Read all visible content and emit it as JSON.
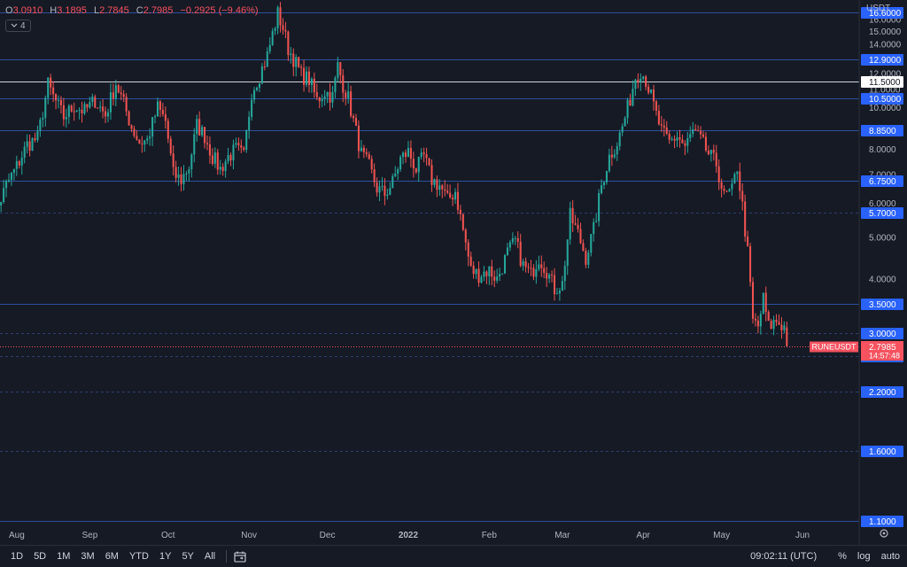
{
  "ohlc": {
    "open_label": "O",
    "open": "3.0910",
    "high_label": "H",
    "high": "3.1895",
    "low_label": "L",
    "low": "2.7845",
    "close_label": "C",
    "close": "2.7985",
    "change": "−0.2925 (−9.46%)"
  },
  "indicator_badge": {
    "icon": "chevron-down-icon",
    "count": "4"
  },
  "currency": {
    "label": "USDT",
    "icon": "chevron-down-icon"
  },
  "chart_data": {
    "type": "candlestick",
    "symbol": "RUNEUSDT",
    "x_ticks": [
      "Aug",
      "Sep",
      "Oct",
      "Nov",
      "Dec",
      "2022",
      "Feb",
      "Mar",
      "Apr",
      "May",
      "Jun"
    ],
    "y_ticks": [
      "16.0000",
      "15.0000",
      "14.0000",
      "12.0000",
      "11.0000",
      "10.0000",
      "8.0000",
      "7.0000",
      "6.0000",
      "5.0000",
      "4.0000"
    ],
    "ylim": [
      1.1,
      17.0
    ],
    "grid": false,
    "horizontal_levels": [
      {
        "value": 16.6,
        "label": "16.6000",
        "style": "blue"
      },
      {
        "value": 12.9,
        "label": "12.9000",
        "style": "blue"
      },
      {
        "value": 11.5,
        "label": "11.5000",
        "style": "white"
      },
      {
        "value": 10.5,
        "label": "10.5000",
        "style": "blue"
      },
      {
        "value": 8.85,
        "label": "8.8500",
        "style": "blue"
      },
      {
        "value": 6.75,
        "label": "6.7500",
        "style": "blue"
      },
      {
        "value": 5.7,
        "label": "5.7000",
        "style": "blue-thin"
      },
      {
        "value": 3.5,
        "label": "3.5000",
        "style": "blue"
      },
      {
        "value": 3.0,
        "label": "3.0000",
        "style": "blue-thin"
      },
      {
        "value": 2.65,
        "label": "2.6500",
        "style": "blue-thin"
      },
      {
        "value": 2.2,
        "label": "2.2000",
        "style": "blue-thin"
      },
      {
        "value": 1.6,
        "label": "1.6000",
        "style": "blue-thin"
      },
      {
        "value": 1.1,
        "label": "1.1000",
        "style": "blue"
      }
    ],
    "last_price": {
      "value": 2.7985,
      "label": "2.7985",
      "countdown": "14:57:48"
    },
    "close_path": [
      [
        "2021-07-23",
        4.0
      ],
      [
        "2021-07-27",
        5.7
      ],
      [
        "2021-07-31",
        6.6
      ],
      [
        "2021-08-04",
        7.3
      ],
      [
        "2021-08-08",
        8.2
      ],
      [
        "2021-08-12",
        8.5
      ],
      [
        "2021-08-16",
        11.3
      ],
      [
        "2021-08-18",
        10.6
      ],
      [
        "2021-08-22",
        9.5
      ],
      [
        "2021-08-26",
        10.1
      ],
      [
        "2021-08-30",
        9.8
      ],
      [
        "2021-09-03",
        10.4
      ],
      [
        "2021-09-07",
        9.6
      ],
      [
        "2021-09-11",
        11.4
      ],
      [
        "2021-09-14",
        10.2
      ],
      [
        "2021-09-17",
        9.0
      ],
      [
        "2021-09-20",
        8.3
      ],
      [
        "2021-09-23",
        8.4
      ],
      [
        "2021-09-27",
        10.0
      ],
      [
        "2021-09-30",
        9.3
      ],
      [
        "2021-10-03",
        7.0
      ],
      [
        "2021-10-06",
        6.8
      ],
      [
        "2021-10-09",
        7.3
      ],
      [
        "2021-10-12",
        9.1
      ],
      [
        "2021-10-15",
        8.6
      ],
      [
        "2021-10-18",
        7.7
      ],
      [
        "2021-10-21",
        7.2
      ],
      [
        "2021-10-24",
        7.7
      ],
      [
        "2021-10-27",
        8.0
      ],
      [
        "2021-10-30",
        7.7
      ],
      [
        "2021-11-02",
        10.9
      ],
      [
        "2021-11-05",
        11.9
      ],
      [
        "2021-11-08",
        13.2
      ],
      [
        "2021-11-10",
        14.8
      ],
      [
        "2021-11-12",
        16.5
      ],
      [
        "2021-11-14",
        15.3
      ],
      [
        "2021-11-16",
        13.7
      ],
      [
        "2021-11-18",
        13.0
      ],
      [
        "2021-11-21",
        11.9
      ],
      [
        "2021-11-24",
        11.6
      ],
      [
        "2021-11-27",
        10.4
      ],
      [
        "2021-11-30",
        10.9
      ],
      [
        "2021-12-03",
        10.6
      ],
      [
        "2021-12-05",
        12.5
      ],
      [
        "2021-12-07",
        11.3
      ],
      [
        "2021-12-09",
        10.5
      ],
      [
        "2021-12-11",
        9.3
      ],
      [
        "2021-12-14",
        7.8
      ],
      [
        "2021-12-17",
        7.3
      ],
      [
        "2021-12-20",
        6.5
      ],
      [
        "2021-12-23",
        6.3
      ],
      [
        "2021-12-26",
        6.7
      ],
      [
        "2021-12-29",
        7.6
      ],
      [
        "2022-01-01",
        7.9
      ],
      [
        "2022-01-04",
        7.2
      ],
      [
        "2022-01-07",
        7.7
      ],
      [
        "2022-01-10",
        6.8
      ],
      [
        "2022-01-13",
        6.6
      ],
      [
        "2022-01-16",
        6.1
      ],
      [
        "2022-01-19",
        6.4
      ],
      [
        "2022-01-22",
        5.2
      ],
      [
        "2022-01-25",
        4.2
      ],
      [
        "2022-01-28",
        4.1
      ],
      [
        "2022-02-01",
        4.2
      ],
      [
        "2022-02-04",
        4.0
      ],
      [
        "2022-02-08",
        4.6
      ],
      [
        "2022-02-11",
        4.9
      ],
      [
        "2022-02-14",
        4.3
      ],
      [
        "2022-02-17",
        4.1
      ],
      [
        "2022-02-20",
        4.5
      ],
      [
        "2022-02-23",
        4.2
      ],
      [
        "2022-02-26",
        3.8
      ],
      [
        "2022-03-01",
        3.9
      ],
      [
        "2022-03-04",
        5.6
      ],
      [
        "2022-03-07",
        5.1
      ],
      [
        "2022-03-10",
        4.5
      ],
      [
        "2022-03-13",
        5.2
      ],
      [
        "2022-03-16",
        6.6
      ],
      [
        "2022-03-19",
        7.7
      ],
      [
        "2022-03-22",
        8.3
      ],
      [
        "2022-03-24",
        9.0
      ],
      [
        "2022-03-27",
        10.5
      ],
      [
        "2022-03-29",
        11.8
      ],
      [
        "2022-03-31",
        12.2
      ],
      [
        "2022-04-02",
        11.6
      ],
      [
        "2022-04-04",
        10.6
      ],
      [
        "2022-04-06",
        9.6
      ],
      [
        "2022-04-08",
        8.8
      ],
      [
        "2022-04-11",
        8.3
      ],
      [
        "2022-04-14",
        8.6
      ],
      [
        "2022-04-17",
        8.1
      ],
      [
        "2022-04-20",
        8.8
      ],
      [
        "2022-04-23",
        8.4
      ],
      [
        "2022-04-26",
        7.8
      ],
      [
        "2022-04-29",
        7.4
      ],
      [
        "2022-05-02",
        6.2
      ],
      [
        "2022-05-05",
        6.4
      ],
      [
        "2022-05-07",
        7.3
      ],
      [
        "2022-05-09",
        5.9
      ],
      [
        "2022-05-11",
        4.6
      ],
      [
        "2022-05-13",
        3.2
      ],
      [
        "2022-05-15",
        3.1
      ],
      [
        "2022-05-17",
        3.6
      ],
      [
        "2022-05-19",
        3.1
      ],
      [
        "2022-05-22",
        3.2
      ],
      [
        "2022-05-25",
        3.1
      ],
      [
        "2022-05-26",
        2.7985
      ]
    ]
  },
  "timeframes": [
    "1D",
    "5D",
    "1M",
    "3M",
    "6M",
    "YTD",
    "1Y",
    "5Y",
    "All"
  ],
  "bottom_right": {
    "time": "09:02:11 (UTC)",
    "percent": "%",
    "log": "log",
    "auto": "auto"
  }
}
